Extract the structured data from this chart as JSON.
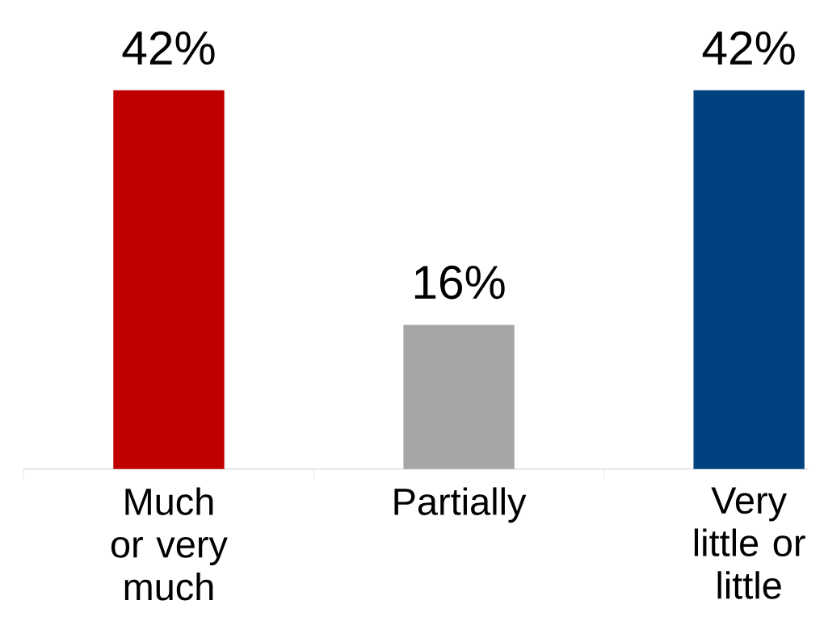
{
  "chart_data": {
    "type": "bar",
    "categories": [
      "Much or very much",
      "Partially",
      "Very little or little"
    ],
    "values": [
      42,
      16,
      42
    ],
    "colors": [
      "#c00000",
      "#a6a6a6",
      "#00417f"
    ],
    "value_labels": [
      "42%",
      "16%",
      "42%"
    ],
    "tick_labels": "x"
  }
}
